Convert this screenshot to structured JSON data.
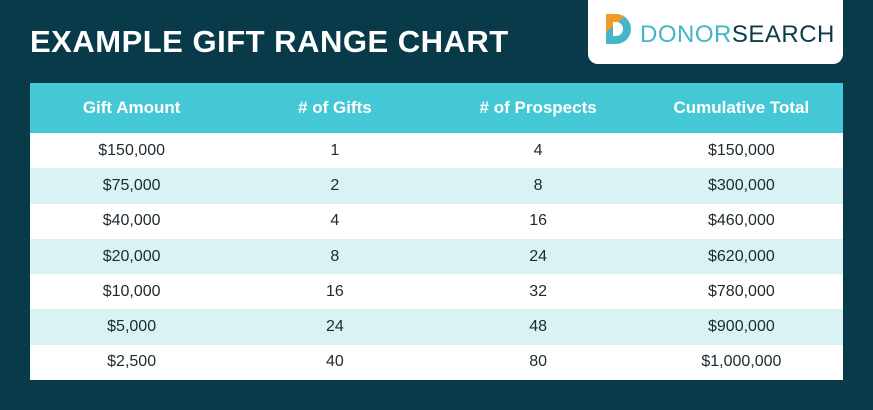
{
  "header": {
    "title": "EXAMPLE GIFT RANGE CHART",
    "logo": [
      "DONOR",
      "SEARCH"
    ]
  },
  "table": {
    "columns": [
      "Gift Amount",
      "# of Gifts",
      "# of Prospects",
      "Cumulative Total"
    ],
    "rows": [
      [
        "$150,000",
        "1",
        "4",
        "$150,000"
      ],
      [
        "$75,000",
        "2",
        "8",
        "$300,000"
      ],
      [
        "$40,000",
        "4",
        "16",
        "$460,000"
      ],
      [
        "$20,000",
        "8",
        "24",
        "$620,000"
      ],
      [
        "$10,000",
        "16",
        "32",
        "$780,000"
      ],
      [
        "$5,000",
        "24",
        "48",
        "$900,000"
      ],
      [
        "$2,500",
        "40",
        "80",
        "$1,000,000"
      ]
    ]
  }
}
